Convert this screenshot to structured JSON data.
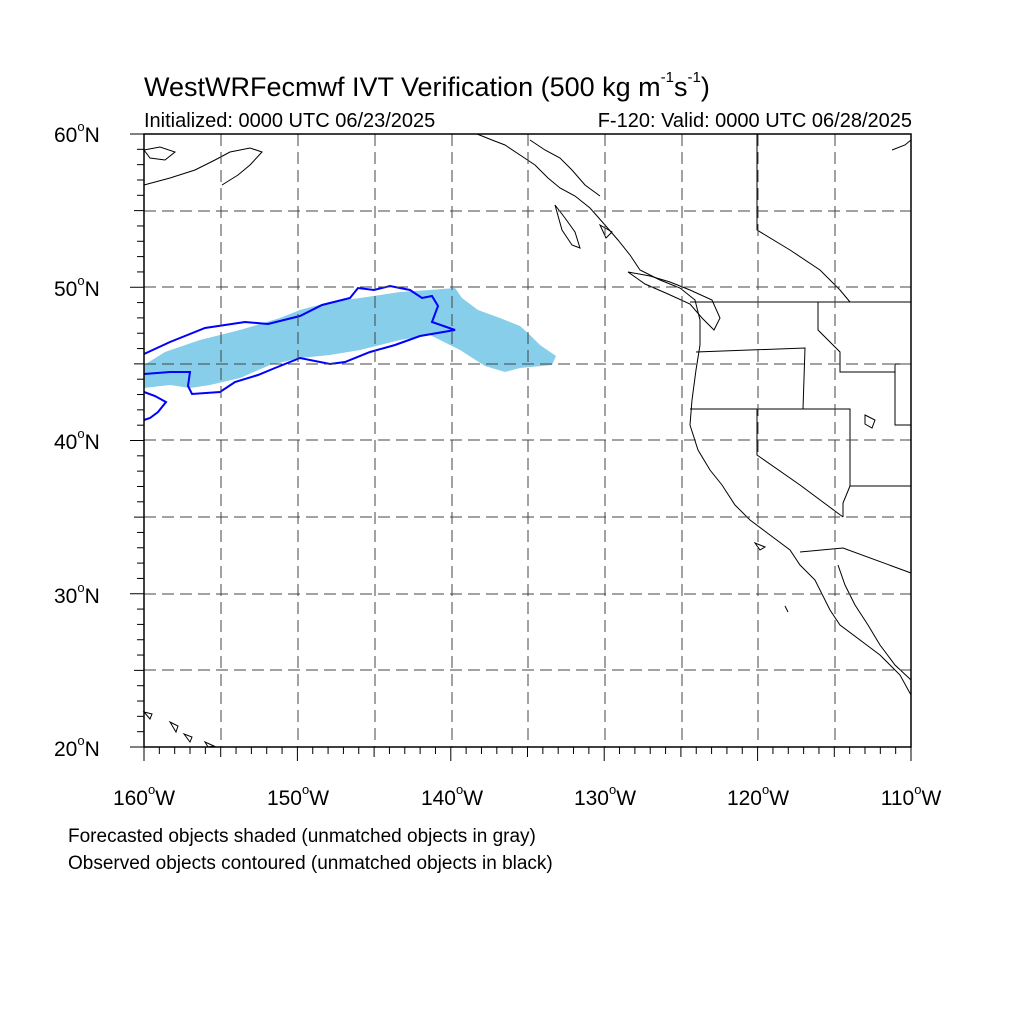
{
  "title": {
    "main": "WestWRFecmwf IVT Verification (500 kg m",
    "exp1": "-1",
    "mid": "s",
    "exp2": "-1",
    "end": ")"
  },
  "subtitle": {
    "initialized": "Initialized: 0000 UTC 06/23/2025",
    "valid": "F-120: Valid: 0000 UTC 06/28/2025"
  },
  "axes": {
    "degree_symbol": "o",
    "lat_labels": [
      {
        "num": "60",
        "hem": "N"
      },
      {
        "num": "50",
        "hem": "N"
      },
      {
        "num": "40",
        "hem": "N"
      },
      {
        "num": "30",
        "hem": "N"
      },
      {
        "num": "20",
        "hem": "N"
      }
    ],
    "lon_labels": [
      {
        "num": "160",
        "hem": "W"
      },
      {
        "num": "150",
        "hem": "W"
      },
      {
        "num": "140",
        "hem": "W"
      },
      {
        "num": "130",
        "hem": "W"
      },
      {
        "num": "120",
        "hem": "W"
      },
      {
        "num": "110",
        "hem": "W"
      }
    ],
    "lat_range": [
      20,
      60
    ],
    "lon_range": [
      -160,
      -110
    ]
  },
  "map": {
    "forecast_color": "#87ceeb",
    "observed_color": "#0000ff",
    "coast_color": "#000000",
    "grid_color": "#444444"
  },
  "notes": {
    "line1": "Forecasted objects shaded (unmatched objects in gray)",
    "line2": "Observed objects contoured (unmatched objects in black)"
  }
}
